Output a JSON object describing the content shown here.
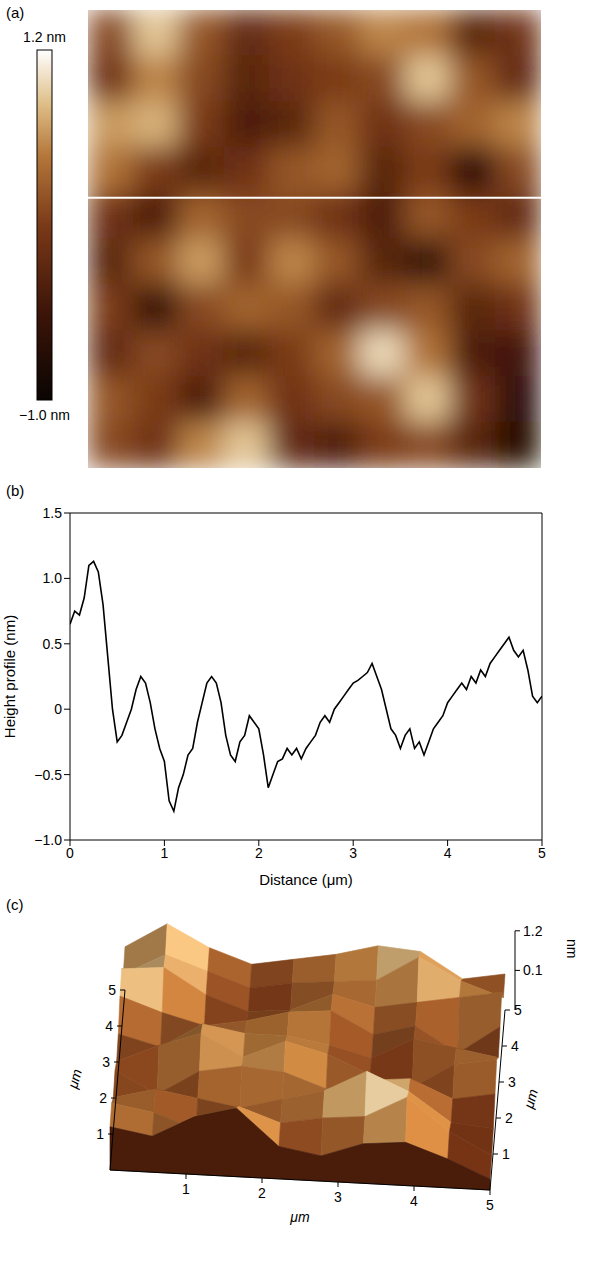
{
  "chart_data": [
    {
      "label": "(a)",
      "type": "heatmap",
      "xlim": [
        0,
        5
      ],
      "ylim": [
        0,
        5
      ],
      "cells": [
        [
          0.2,
          0.9,
          0.3,
          -0.1,
          0.1,
          0.3,
          0.6,
          0.5,
          -0.2,
          0.0
        ],
        [
          0.0,
          0.6,
          0.2,
          -0.2,
          0.0,
          0.1,
          0.2,
          0.9,
          0.3,
          -0.1
        ],
        [
          0.7,
          0.8,
          0.1,
          -0.3,
          -0.2,
          0.3,
          0.0,
          0.2,
          0.4,
          0.6
        ],
        [
          0.5,
          0.1,
          -0.2,
          0.0,
          0.3,
          0.4,
          -0.2,
          0.1,
          -0.6,
          0.2
        ],
        [
          0.0,
          -0.3,
          0.4,
          0.2,
          0.2,
          0.0,
          -0.3,
          0.3,
          0.1,
          -0.1
        ],
        [
          -0.2,
          0.3,
          0.7,
          0.1,
          0.6,
          0.3,
          -0.2,
          -0.5,
          0.2,
          0.4
        ],
        [
          0.1,
          -0.5,
          0.2,
          0.4,
          0.3,
          -0.1,
          0.2,
          0.3,
          -0.2,
          0.0
        ],
        [
          -0.1,
          0.2,
          0.0,
          -0.2,
          0.1,
          0.4,
          1.0,
          0.5,
          -0.3,
          -0.4
        ],
        [
          0.3,
          0.1,
          -0.3,
          0.4,
          0.0,
          0.2,
          0.3,
          0.9,
          0.0,
          -0.6
        ],
        [
          0.2,
          0.0,
          0.6,
          0.9,
          -0.1,
          -0.3,
          0.1,
          0.2,
          -0.2,
          -0.7
        ]
      ],
      "colorbar": {
        "range": [
          -1.0,
          1.2
        ],
        "ticks": [
          {
            "value": 1.2,
            "label": "1.2 nm"
          },
          {
            "value": -1.0,
            "label": "−1.0 nm"
          }
        ]
      },
      "profile_line_y": 2.95
    },
    {
      "label": "(b)",
      "type": "line",
      "x_label": "Distance (μm)",
      "y_label": "Height profile (nm)",
      "x": [
        0,
        0.05,
        0.1,
        0.15,
        0.2,
        0.25,
        0.3,
        0.35,
        0.4,
        0.45,
        0.5,
        0.55,
        0.6,
        0.65,
        0.7,
        0.75,
        0.8,
        0.85,
        0.9,
        0.95,
        1.0,
        1.05,
        1.1,
        1.15,
        1.2,
        1.25,
        1.3,
        1.35,
        1.4,
        1.45,
        1.5,
        1.55,
        1.6,
        1.65,
        1.7,
        1.75,
        1.8,
        1.85,
        1.9,
        1.95,
        2.0,
        2.05,
        2.1,
        2.15,
        2.2,
        2.25,
        2.3,
        2.35,
        2.4,
        2.45,
        2.5,
        2.55,
        2.6,
        2.65,
        2.7,
        2.75,
        2.8,
        2.85,
        2.9,
        2.95,
        3.0,
        3.05,
        3.1,
        3.15,
        3.2,
        3.25,
        3.3,
        3.35,
        3.4,
        3.45,
        3.5,
        3.55,
        3.6,
        3.65,
        3.7,
        3.75,
        3.8,
        3.85,
        3.9,
        3.95,
        4.0,
        4.05,
        4.1,
        4.15,
        4.2,
        4.25,
        4.3,
        4.35,
        4.4,
        4.45,
        4.5,
        4.55,
        4.6,
        4.65,
        4.7,
        4.75,
        4.8,
        4.85,
        4.9,
        4.95,
        5.0
      ],
      "series": [
        {
          "color": "#000000",
          "values": [
            0.65,
            0.75,
            0.72,
            0.85,
            1.1,
            1.13,
            1.05,
            0.8,
            0.4,
            0.0,
            -0.25,
            -0.2,
            -0.1,
            0.0,
            0.15,
            0.25,
            0.2,
            0.05,
            -0.15,
            -0.3,
            -0.4,
            -0.7,
            -0.78,
            -0.6,
            -0.5,
            -0.35,
            -0.3,
            -0.1,
            0.05,
            0.2,
            0.25,
            0.2,
            0.05,
            -0.2,
            -0.35,
            -0.4,
            -0.25,
            -0.2,
            -0.05,
            -0.1,
            -0.15,
            -0.35,
            -0.6,
            -0.5,
            -0.4,
            -0.38,
            -0.3,
            -0.35,
            -0.3,
            -0.38,
            -0.3,
            -0.25,
            -0.2,
            -0.1,
            -0.05,
            -0.1,
            0.0,
            0.05,
            0.1,
            0.15,
            0.2,
            0.22,
            0.25,
            0.28,
            0.35,
            0.25,
            0.15,
            0.0,
            -0.15,
            -0.2,
            -0.3,
            -0.2,
            -0.15,
            -0.3,
            -0.25,
            -0.35,
            -0.25,
            -0.15,
            -0.1,
            -0.05,
            0.05,
            0.1,
            0.15,
            0.2,
            0.15,
            0.25,
            0.2,
            0.3,
            0.25,
            0.35,
            0.4,
            0.45,
            0.5,
            0.55,
            0.45,
            0.4,
            0.45,
            0.3,
            0.1,
            0.05,
            0.1
          ]
        }
      ],
      "xlim": [
        0,
        5
      ],
      "ylim": [
        -1.0,
        1.5
      ],
      "xticks": [
        0,
        1,
        2,
        3,
        4,
        5
      ],
      "yticks": [
        {
          "value": -1.0,
          "label": "−1.0"
        },
        {
          "value": -0.5,
          "label": "−0.5"
        },
        0,
        0.5,
        {
          "value": 1.0,
          "label": "1.0"
        },
        1.5
      ]
    },
    {
      "label": "(c)",
      "type": "surface",
      "x_label": "μm",
      "y_label": "μm",
      "z_label": "nm",
      "xlim": [
        0,
        5
      ],
      "ylim": [
        0,
        5
      ],
      "xticks": [
        1,
        2,
        3,
        4,
        5
      ],
      "yticks": [
        1,
        2,
        3,
        4,
        5
      ],
      "zticks": [
        1.2,
        0.1
      ]
    }
  ]
}
